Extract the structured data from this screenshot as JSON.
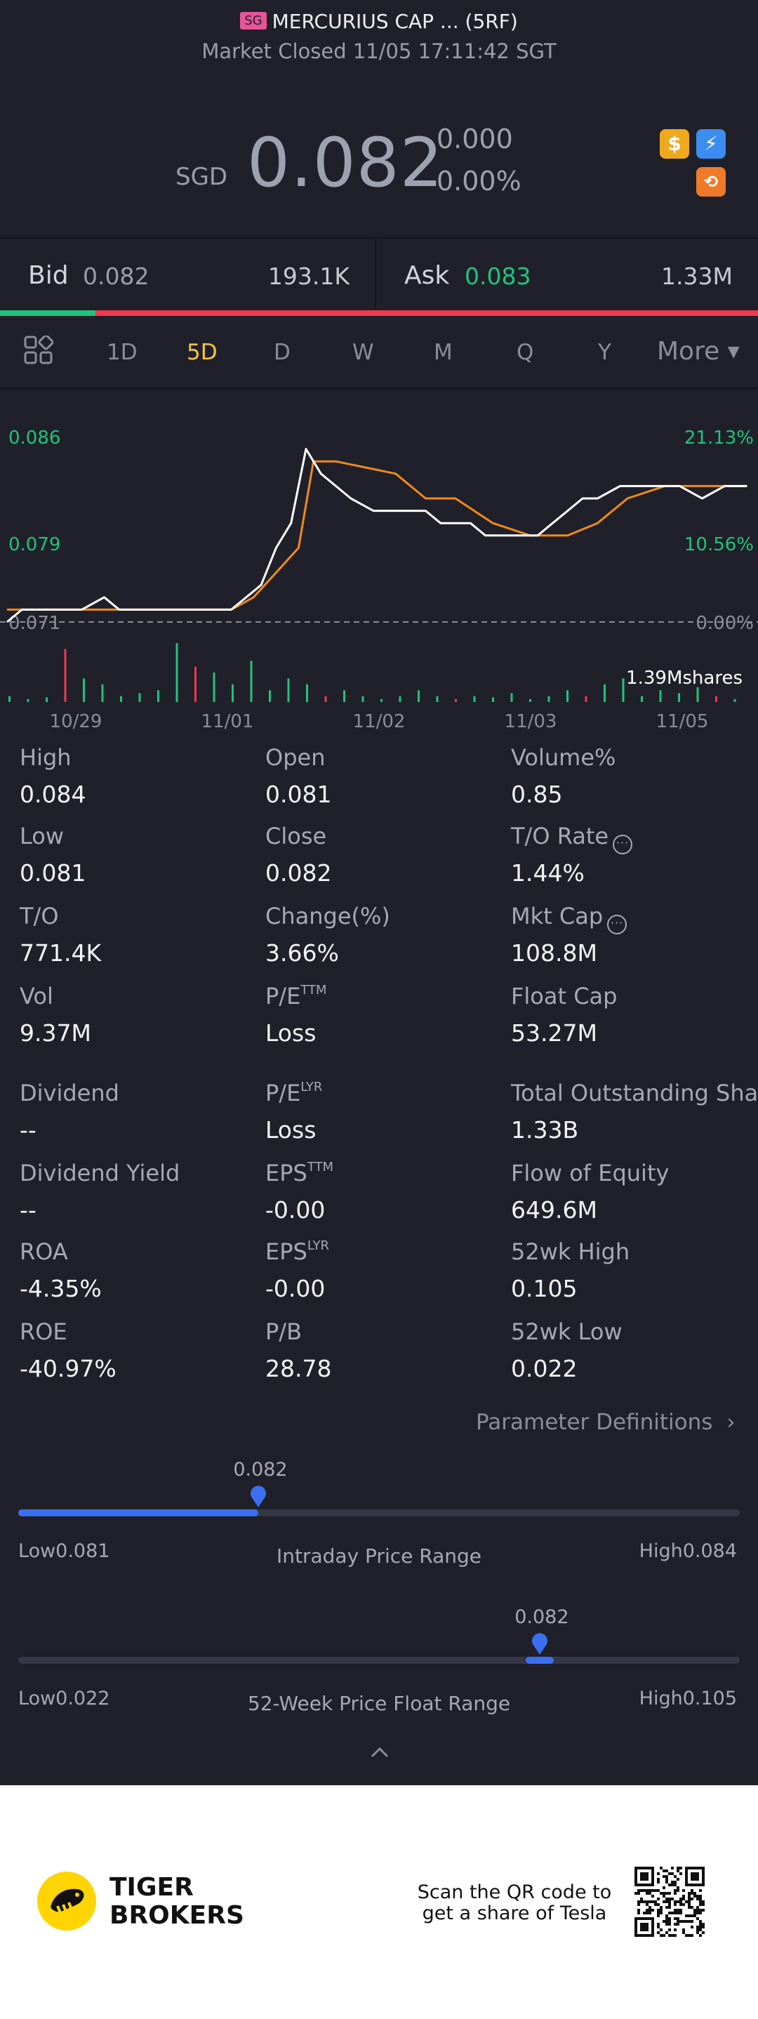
{
  "header": {
    "market_badge": "SG",
    "title": "MERCURIUS CAP ... (5RF)",
    "status": "Market Closed 11/05 17:11:42 SGT",
    "currency": "SGD",
    "price": "0.082",
    "change": "0.000",
    "change_pct": "0.00%"
  },
  "quote": {
    "bid_label": "Bid",
    "bid_price": "0.082",
    "bid_size": "193.1K",
    "ask_label": "Ask",
    "ask_price": "0.083",
    "ask_size": "1.33M",
    "bid_ratio": 0.126
  },
  "tabs": {
    "items": [
      "1D",
      "5D",
      "D",
      "W",
      "M",
      "Q",
      "Y"
    ],
    "active": "5D",
    "more": "More"
  },
  "chart_data": {
    "type": "line",
    "y_left_labels": [
      "0.086",
      "0.079",
      "0.071"
    ],
    "y_right_labels": [
      "21.13%",
      "10.56%",
      "0.00%"
    ],
    "x_labels": [
      "10/29",
      "11/01",
      "11/02",
      "11/03",
      "11/05"
    ],
    "ylim": [
      0.071,
      0.086
    ],
    "volume_label": "1.39Mshares",
    "series": [
      {
        "color": "#ffffff",
        "x": [
          0,
          0.2,
          0.5,
          0.8,
          1,
          1.3,
          1.5,
          1.8,
          2.1,
          2.4,
          2.7,
          3,
          3.2,
          3.4,
          3.6,
          3.8,
          4,
          4.2,
          4.4,
          4.6,
          4.9,
          5.1,
          5.3,
          5.6,
          5.8,
          6,
          6.2,
          6.4,
          6.7,
          6.9,
          7.1,
          7.3,
          7.5,
          7.7,
          7.9,
          8.2,
          8.5,
          8.8,
          9,
          9.3,
          9.6,
          9.9
        ],
        "values": [
          0.071,
          0.072,
          0.072,
          0.072,
          0.072,
          0.073,
          0.072,
          0.072,
          0.072,
          0.072,
          0.072,
          0.072,
          0.073,
          0.074,
          0.077,
          0.079,
          0.085,
          0.083,
          0.082,
          0.081,
          0.08,
          0.08,
          0.08,
          0.08,
          0.079,
          0.079,
          0.079,
          0.078,
          0.078,
          0.078,
          0.078,
          0.079,
          0.08,
          0.081,
          0.081,
          0.082,
          0.082,
          0.082,
          0.082,
          0.081,
          0.082,
          0.082
        ]
      },
      {
        "color": "#f08a1c",
        "x": [
          0,
          0.5,
          1,
          1.5,
          2,
          2.5,
          3,
          3.3,
          3.6,
          3.9,
          4.1,
          4.4,
          4.8,
          5.2,
          5.6,
          6,
          6.5,
          7,
          7.5,
          7.9,
          8.3,
          8.8,
          9.3,
          9.9
        ],
        "values": [
          0.072,
          0.072,
          0.072,
          0.072,
          0.072,
          0.072,
          0.072,
          0.073,
          0.075,
          0.077,
          0.084,
          0.084,
          0.0835,
          0.083,
          0.081,
          0.081,
          0.079,
          0.078,
          0.078,
          0.079,
          0.081,
          0.082,
          0.082,
          0.082
        ]
      }
    ],
    "volume": [
      0.1,
      0.05,
      0.08,
      0.9,
      0.4,
      0.3,
      0.1,
      0.15,
      0.2,
      1.0,
      0.6,
      0.5,
      0.3,
      0.7,
      0.2,
      0.4,
      0.3,
      0.1,
      0.2,
      0.1,
      0.05,
      0.1,
      0.2,
      0.1,
      0.05,
      0.1,
      0.08,
      0.15,
      0.05,
      0.1,
      0.2,
      0.1,
      0.3,
      0.4,
      0.1,
      0.2,
      0.15,
      0.25,
      0.1,
      0.05
    ]
  },
  "stats": {
    "rows": [
      [
        {
          "label": "High",
          "value": "0.084"
        },
        {
          "label": "Open",
          "value": "0.081"
        },
        {
          "label": "Volume%",
          "value": "0.85"
        }
      ],
      [
        {
          "label": "Low",
          "value": "0.081"
        },
        {
          "label": "Close",
          "value": "0.082"
        },
        {
          "label": "T/O Rate",
          "value": "1.44%",
          "info": true
        }
      ],
      [
        {
          "label": "T/O",
          "value": "771.4K"
        },
        {
          "label": "Change(%)",
          "value": "3.66%"
        },
        {
          "label": "Mkt Cap",
          "value": "108.8M",
          "info": true
        }
      ],
      [
        {
          "label": "Vol",
          "value": "9.37M"
        },
        {
          "label": "P/E",
          "sup": "TTM",
          "value": "Loss"
        },
        {
          "label": "Float Cap",
          "value": "53.27M"
        }
      ],
      [
        {
          "label": "Dividend",
          "value": "--"
        },
        {
          "label": "P/E",
          "sup": "LYR",
          "value": "Loss"
        },
        {
          "label": "Total Outstanding Shares",
          "value": "1.33B"
        }
      ],
      [
        {
          "label": "Dividend Yield",
          "value": "--"
        },
        {
          "label": "EPS",
          "sup": "TTM",
          "value": "-0.00"
        },
        {
          "label": "Flow of Equity",
          "value": "649.6M"
        }
      ],
      [
        {
          "label": "ROA",
          "value": "-4.35%"
        },
        {
          "label": "EPS",
          "sup": "LYR",
          "value": "-0.00"
        },
        {
          "label": "52wk High",
          "value": "0.105"
        }
      ],
      [
        {
          "label": "ROE",
          "value": "-40.97%"
        },
        {
          "label": "P/B",
          "value": "28.78"
        },
        {
          "label": "52wk Low",
          "value": "0.022"
        }
      ]
    ],
    "param_def": "Parameter Definitions"
  },
  "ranges": {
    "intraday": {
      "current": "0.082",
      "low_label": "Low",
      "low": "0.081",
      "high_label": "High",
      "high": "0.084",
      "title": "Intraday Price Range",
      "position": 0.333
    },
    "week52": {
      "current": "0.082",
      "low_label": "Low",
      "low": "0.022",
      "high_label": "High",
      "high": "0.105",
      "title": "52-Week Price Float Range",
      "position": 0.723
    }
  },
  "footer": {
    "brand_line1": "TIGER",
    "brand_line2": "BROKERS",
    "qr_line1": "Scan the QR code to",
    "qr_line2": "get a share of Tesla"
  }
}
